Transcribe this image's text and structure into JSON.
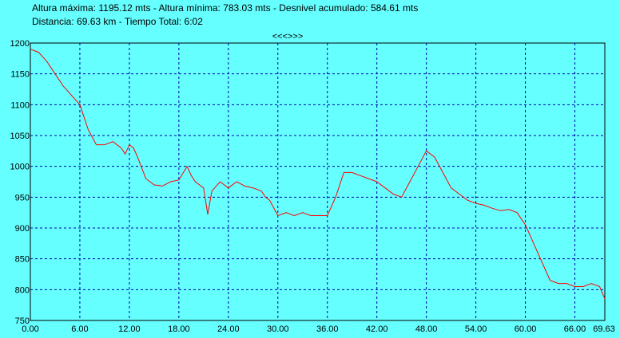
{
  "header": {
    "line1": "Altura máxima: 1195.12 mts - Altura mínima: 783.03 mts - Desnivel acumulado: 584.61 mts",
    "line2": "Distancia: 69.63 km - Tiempo Total: 6:02",
    "nav_label": "<<<>>>"
  },
  "colors": {
    "background": "#66FFFF",
    "line": "#FF0000",
    "grid": "#0000AA",
    "axis": "#000000"
  },
  "chart_data": {
    "type": "line",
    "title": "",
    "xlabel": "",
    "ylabel": "",
    "xlim": [
      0,
      69.63
    ],
    "ylim": [
      750,
      1200
    ],
    "x_ticks": [
      0,
      6,
      12,
      18,
      24,
      30,
      36,
      42,
      48,
      54,
      60,
      66,
      69.63
    ],
    "x_tick_labels": [
      "0.00",
      "6.00",
      "12.00",
      "18.00",
      "24.00",
      "30.00",
      "36.00",
      "42.00",
      "48.00",
      "54.00",
      "60.00",
      "66.00",
      "69.63"
    ],
    "y_ticks": [
      750,
      800,
      850,
      900,
      950,
      1000,
      1050,
      1100,
      1150,
      1200
    ],
    "y_tick_labels": [
      "750",
      "800",
      "850",
      "900",
      "950",
      "1000",
      "1050",
      "1100",
      "1150",
      "1200"
    ],
    "grid": true,
    "series": [
      {
        "x": [
          0,
          1.0,
          2.0,
          3.0,
          4.0,
          5.0,
          6.0,
          7.0,
          8.0,
          9.0,
          10.0,
          11.0,
          11.5,
          12.0,
          12.5,
          13.0,
          14.0,
          15.0,
          16.0,
          17.0,
          18.0,
          19.0,
          19.5,
          20.0,
          21.0,
          21.5,
          22.0,
          23.0,
          24.0,
          25.0,
          26.0,
          27.0,
          28.0,
          28.5,
          29.0,
          30.0,
          31.0,
          32.0,
          33.0,
          34.0,
          35.0,
          36.0,
          37.0,
          38.0,
          39.0,
          40.0,
          41.0,
          42.0,
          43.0,
          44.0,
          45.0,
          46.0,
          47.0,
          48.0,
          49.0,
          50.0,
          51.0,
          52.0,
          53.0,
          54.0,
          55.0,
          56.0,
          57.0,
          58.0,
          59.0,
          60.0,
          61.0,
          62.0,
          63.0,
          64.0,
          65.0,
          66.0,
          67.0,
          68.0,
          69.0,
          69.63
        ],
        "y": [
          1190,
          1185,
          1170,
          1150,
          1130,
          1115,
          1100,
          1060,
          1035,
          1035,
          1040,
          1030,
          1020,
          1035,
          1030,
          1015,
          980,
          970,
          968,
          975,
          978,
          1000,
          985,
          975,
          965,
          922,
          960,
          975,
          965,
          975,
          968,
          965,
          960,
          950,
          945,
          920,
          925,
          920,
          925,
          920,
          920,
          920,
          950,
          990,
          990,
          985,
          980,
          975,
          965,
          955,
          950,
          975,
          1000,
          1025,
          1015,
          990,
          965,
          955,
          945,
          940,
          937,
          932,
          928,
          930,
          925,
          905,
          875,
          845,
          815,
          810,
          810,
          805,
          805,
          810,
          805,
          785
        ]
      }
    ]
  }
}
